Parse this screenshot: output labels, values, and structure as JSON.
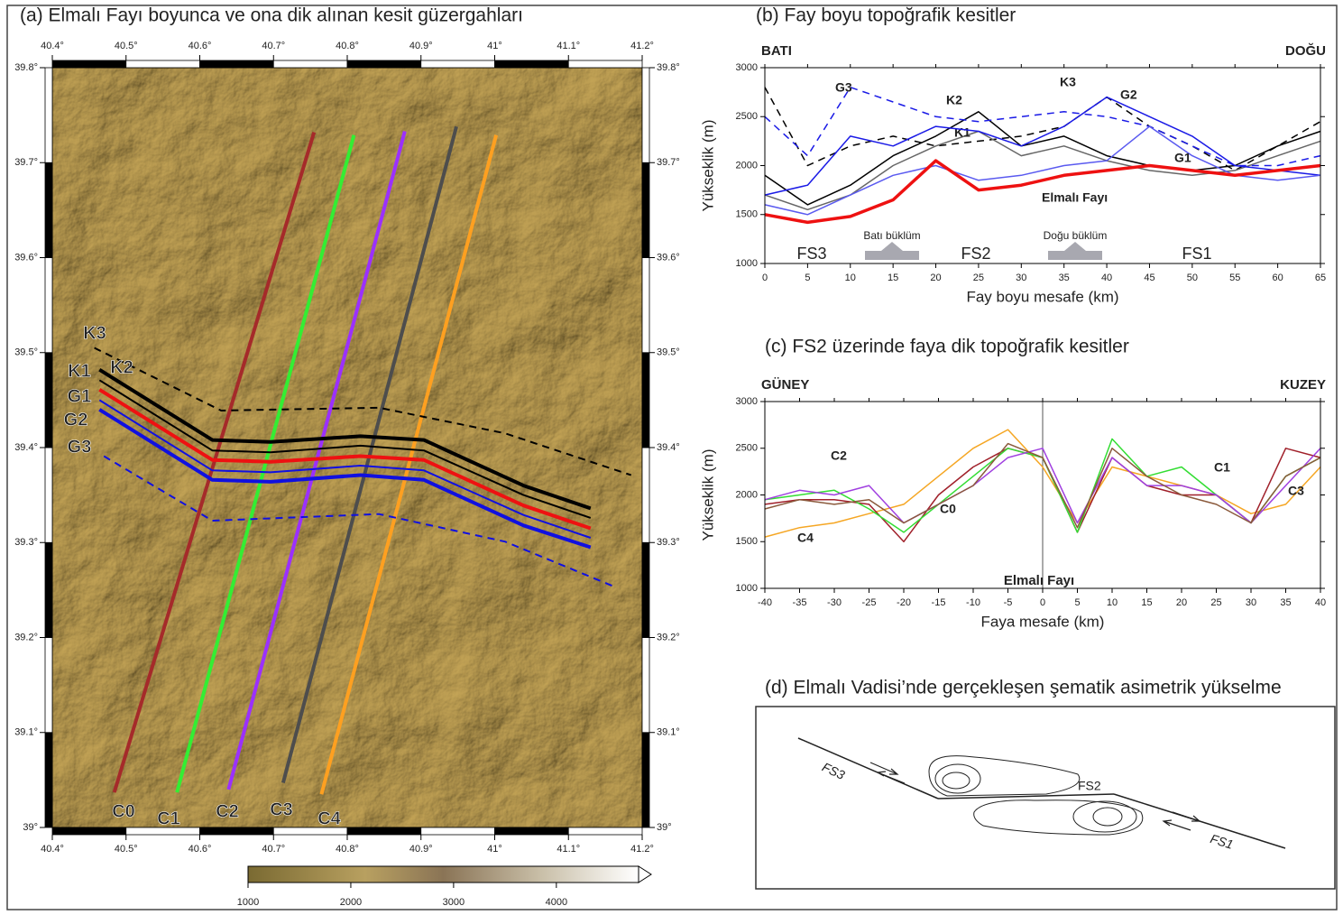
{
  "chart_data": [
    {
      "type": "map",
      "title": "(a) Elmalı Fayı boyunca ve ona dik alınan kesit güzergahları",
      "xlim": [
        40.4,
        41.2
      ],
      "xticks": [
        {
          "value": 40.4,
          "label": "40.4°"
        },
        {
          "value": 40.5,
          "label": "40.5°"
        },
        {
          "value": 40.6,
          "label": "40.6°"
        },
        {
          "value": 40.7,
          "label": "40.7°"
        },
        {
          "value": 40.8,
          "label": "40.8°"
        },
        {
          "value": 40.9,
          "label": "40.9°"
        },
        {
          "value": 41,
          "label": "41°"
        },
        {
          "value": 41.1,
          "label": "41.1°"
        },
        {
          "value": 41.2,
          "label": "41.2°"
        }
      ],
      "ylim": [
        39,
        39.8
      ],
      "yticks": [
        {
          "value": 39,
          "label": "39°"
        },
        {
          "value": 39.1,
          "label": "39.1°"
        },
        {
          "value": 39.2,
          "label": "39.2°"
        },
        {
          "value": 39.3,
          "label": "39.3°"
        },
        {
          "value": 39.4,
          "label": "39.4°"
        },
        {
          "value": 39.5,
          "label": "39.5°"
        },
        {
          "value": 39.6,
          "label": "39.6°"
        },
        {
          "value": 39.7,
          "label": "39.7°"
        },
        {
          "value": 39.8,
          "label": "39.8°"
        }
      ],
      "series": [
        {
          "name": "C0",
          "color": "#a52a2a",
          "x": [
            40.484,
            40.755
          ],
          "values": [
            39.037,
            39.732
          ]
        },
        {
          "name": "C1",
          "color": "#33ee33",
          "x": [
            40.569,
            40.809
          ],
          "values": [
            39.037,
            39.729
          ]
        },
        {
          "name": "C2",
          "color": "#9b30ff",
          "x": [
            40.639,
            40.878
          ],
          "values": [
            39.04,
            39.733
          ]
        },
        {
          "name": "C3",
          "color": "#4d4d4d",
          "x": [
            40.713,
            40.948
          ],
          "values": [
            39.047,
            39.738
          ]
        },
        {
          "name": "C4",
          "color": "#ffa020",
          "x": [
            40.765,
            41.002
          ],
          "values": [
            39.035,
            39.729
          ]
        },
        {
          "name": "K3",
          "color": "#000000",
          "dashed": true,
          "x": [
            40.457,
            40.629,
            40.843,
            41.014,
            41.185
          ],
          "values": [
            39.505,
            39.439,
            39.442,
            39.415,
            39.371
          ]
        },
        {
          "name": "K1",
          "color": "#000000",
          "x": [
            40.464,
            40.617,
            40.696,
            40.818,
            40.904,
            41.039,
            41.13
          ],
          "values": [
            39.471,
            39.397,
            39.395,
            39.402,
            39.397,
            39.35,
            39.326
          ]
        },
        {
          "name": "K2",
          "color": "#000000",
          "width": 4,
          "x": [
            40.464,
            40.617,
            40.696,
            40.818,
            40.904,
            41.039,
            41.13
          ],
          "values": [
            39.482,
            39.408,
            39.406,
            39.412,
            39.408,
            39.36,
            39.336
          ]
        },
        {
          "name": "G1",
          "color": "#1010e0",
          "x": [
            40.464,
            40.617,
            40.696,
            40.818,
            40.904,
            41.039,
            41.13
          ],
          "values": [
            39.45,
            39.376,
            39.374,
            39.381,
            39.376,
            39.329,
            39.305
          ]
        },
        {
          "name": "G2",
          "color": "#1010e0",
          "width": 4,
          "x": [
            40.464,
            40.617,
            40.696,
            40.818,
            40.904,
            41.039,
            41.13
          ],
          "values": [
            39.44,
            39.366,
            39.364,
            39.371,
            39.366,
            39.318,
            39.295
          ]
        },
        {
          "name": "G3",
          "color": "#1010e0",
          "dashed": true,
          "x": [
            40.47,
            40.617,
            40.843,
            41.014,
            41.161
          ],
          "values": [
            39.391,
            39.323,
            39.33,
            39.301,
            39.254
          ]
        },
        {
          "color": "#ee1111",
          "width": 4,
          "x": [
            40.464,
            40.617,
            40.696,
            40.818,
            40.904,
            41.039,
            41.13
          ],
          "values": [
            39.461,
            39.387,
            39.385,
            39.391,
            39.387,
            39.339,
            39.315
          ]
        }
      ],
      "colorbar": {
        "lim": [
          1000,
          4800
        ],
        "ticks": [
          1000,
          2000,
          3000,
          4000
        ]
      }
    },
    {
      "type": "line",
      "title": "(b) Fay boyu topoğrafik kesitler",
      "x_label": "Fay boyu mesafe (km)",
      "y_label": "Yükseklik (m)",
      "left_label": "BATI",
      "right_label": "DOĞU",
      "annotations": [
        "FS3",
        "FS2",
        "FS1",
        "Batı büklüm",
        "Doğu büklüm"
      ],
      "xlim": [
        0,
        65
      ],
      "xticks": [
        0,
        5,
        10,
        15,
        20,
        25,
        30,
        35,
        40,
        45,
        50,
        55,
        60,
        65
      ],
      "ylim": [
        1000,
        3000
      ],
      "yticks": [
        1000,
        1500,
        2000,
        2500,
        3000
      ],
      "x": [
        0,
        5,
        10,
        15,
        20,
        25,
        30,
        35,
        40,
        45,
        50,
        55,
        60,
        65
      ],
      "series": [
        {
          "name": "K3",
          "color": "#000000",
          "dashed": true,
          "values": [
            2800,
            2000,
            2200,
            2300,
            2200,
            2250,
            2300,
            2400,
            2700,
            2400,
            2200,
            1950,
            2200,
            2450
          ]
        },
        {
          "name": "K2",
          "color": "#000000",
          "values": [
            1900,
            1600,
            1800,
            2100,
            2300,
            2550,
            2200,
            2300,
            2100,
            2000,
            1950,
            2000,
            2200,
            2350
          ]
        },
        {
          "name": "K1",
          "color": "#666666",
          "values": [
            1700,
            1550,
            1700,
            2000,
            2200,
            2350,
            2100,
            2200,
            2050,
            1950,
            1900,
            1950,
            2100,
            2250
          ]
        },
        {
          "name": "G3",
          "color": "#1a1ae6",
          "dashed": true,
          "values": [
            2500,
            2100,
            2800,
            2650,
            2500,
            2450,
            2500,
            2550,
            2500,
            2400,
            2200,
            2000,
            2000,
            2100
          ]
        },
        {
          "name": "G2",
          "color": "#1a1ae6",
          "values": [
            1700,
            1800,
            2300,
            2200,
            2400,
            2350,
            2200,
            2400,
            2700,
            2500,
            2300,
            2000,
            1950,
            1900
          ]
        },
        {
          "name": "G1",
          "color": "#5a5af0",
          "values": [
            1600,
            1500,
            1700,
            1900,
            2000,
            1850,
            1900,
            2000,
            2050,
            2400,
            2100,
            1900,
            1850,
            1900
          ]
        },
        {
          "name": "Elmalı Fayı",
          "color": "#ee1111",
          "width": 3.5,
          "values": [
            1500,
            1420,
            1480,
            1650,
            2050,
            1750,
            1800,
            1900,
            1950,
            2000,
            1950,
            1900,
            1950,
            2000
          ]
        }
      ]
    },
    {
      "type": "line",
      "title": "(c) FS2 üzerinde faya dik topoğrafik kesitler",
      "x_label": "Faya mesafe (km)",
      "y_label": "Yükseklik (m)",
      "left_label": "GÜNEY",
      "right_label": "KUZEY",
      "fault": {
        "label": "Elmalı Fayı",
        "x": 0
      },
      "xlim": [
        -40,
        40
      ],
      "xticks": [
        -40,
        -35,
        -30,
        -25,
        -20,
        -15,
        -10,
        -5,
        0,
        5,
        10,
        15,
        20,
        25,
        30,
        35,
        40
      ],
      "ylim": [
        1000,
        3000
      ],
      "yticks": [
        1000,
        1500,
        2000,
        2500,
        3000
      ],
      "x": [
        -40,
        -35,
        -30,
        -25,
        -20,
        -15,
        -10,
        -5,
        0,
        5,
        10,
        15,
        20,
        25,
        30,
        35,
        40
      ],
      "series": [
        {
          "name": "C4",
          "color": "#f5a623",
          "values": [
            1550,
            1650,
            1700,
            1800,
            1900,
            2200,
            2500,
            2700,
            2300,
            1700,
            2300,
            2200,
            2100,
            2000,
            1800,
            1900,
            2300
          ]
        },
        {
          "name": "C0",
          "color": "#a0202a",
          "values": [
            1900,
            1950,
            1950,
            1900,
            1500,
            2000,
            2300,
            2500,
            2400,
            1600,
            2400,
            2100,
            2000,
            2000,
            1700,
            2500,
            2400
          ]
        },
        {
          "name": "C1",
          "color": "#33dd33",
          "values": [
            1950,
            2000,
            2050,
            1850,
            1600,
            1900,
            2200,
            2500,
            2400,
            1600,
            2600,
            2200,
            2300,
            2000,
            1700,
            2200,
            2400
          ]
        },
        {
          "name": "C2",
          "color": "#a040e0",
          "values": [
            1950,
            2050,
            2000,
            2100,
            1700,
            1900,
            2100,
            2400,
            2500,
            1700,
            2400,
            2100,
            2100,
            2000,
            1700,
            2100,
            2500
          ]
        },
        {
          "name": "C3",
          "color": "#8b5a3c",
          "values": [
            1850,
            1950,
            1900,
            1950,
            1700,
            1900,
            2100,
            2550,
            2400,
            1650,
            2500,
            2200,
            2000,
            1900,
            1700,
            2200,
            2400
          ]
        }
      ]
    }
  ],
  "diagram": {
    "title": "(d) Elmalı Vadisi’nde gerçekleşen şematik asimetrik yükselme",
    "labels": [
      "FS3",
      "FS2",
      "FS1"
    ]
  }
}
